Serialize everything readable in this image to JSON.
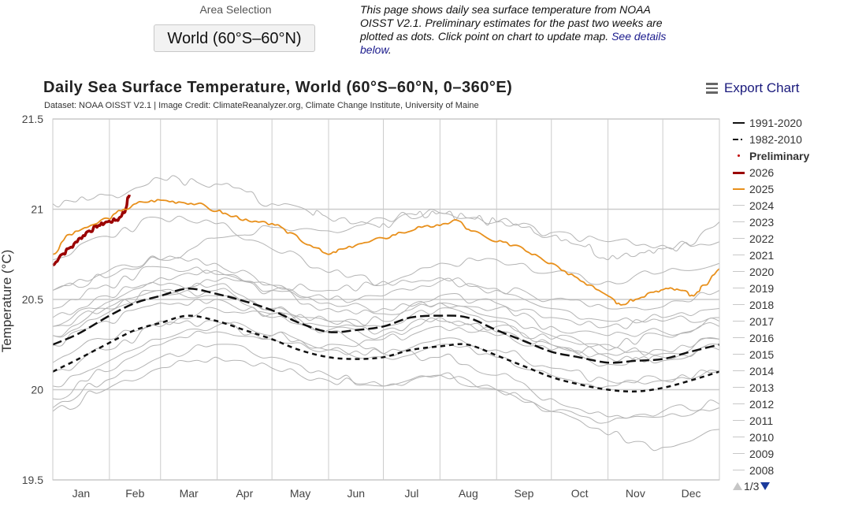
{
  "controls": {
    "area_selection_label": "Area Selection",
    "area_selection_value": "World (60°S–60°N)"
  },
  "intro": {
    "text": "This page shows daily sea surface temperature from NOAA OISST V2.1. Preliminary estimates for the past two weeks are plotted as dots. Click point on chart to update map. ",
    "link": "See details below",
    "after_link": "."
  },
  "export": {
    "label": "Export Chart",
    "icon": "hamburger-menu-icon"
  },
  "legend_nav": {
    "page": "1/3",
    "up_icon": "triangle-up-icon",
    "down_icon": "triangle-down-icon"
  },
  "colors": {
    "y2026": "#9b0000",
    "y2025": "#e8901c",
    "climatology": "#111111",
    "years": "#b4b4b4",
    "preliminary": "#c00000",
    "grid": "#cccccc"
  },
  "chart_data": {
    "type": "line",
    "title": "Daily Sea Surface Temperature, World (60°S–60°N, 0–360°E)",
    "subtitle": "Dataset: NOAA OISST V2.1 | Image Credit: ClimateReanalyzer.org, Climate Change Institute, University of Maine",
    "xlabel": "",
    "ylabel": "Temperature (°C)",
    "ylim": [
      19.5,
      21.5
    ],
    "yticks": [
      "19.5",
      "20",
      "20.5",
      "21",
      "21.5"
    ],
    "xlim_day_of_year": [
      1,
      366
    ],
    "xticks": [
      "Jan",
      "Feb",
      "Mar",
      "Apr",
      "May",
      "Jun",
      "Jul",
      "Aug",
      "Sep",
      "Oct",
      "Nov",
      "Dec"
    ],
    "grid": true,
    "legend_position": "right",
    "legend": [
      "1991-2020",
      "1982-2010",
      "Preliminary",
      "2026",
      "2025",
      "2024",
      "2023",
      "2022",
      "2021",
      "2020",
      "2019",
      "2018",
      "2017",
      "2016",
      "2015",
      "2014",
      "2013",
      "2012",
      "2011",
      "2010",
      "2009",
      "2008"
    ],
    "series": [
      {
        "name": "1991-2020",
        "style": "long-dash",
        "x": [
          1,
          15,
          32,
          46,
          60,
          75,
          91,
          106,
          121,
          136,
          152,
          167,
          182,
          197,
          213,
          228,
          244,
          259,
          274,
          289,
          305,
          320,
          335,
          350,
          366
        ],
        "values": [
          20.25,
          20.31,
          20.41,
          20.48,
          20.52,
          20.56,
          20.53,
          20.49,
          20.44,
          20.37,
          20.32,
          20.33,
          20.35,
          20.4,
          20.41,
          20.4,
          20.33,
          20.27,
          20.21,
          20.18,
          20.15,
          20.16,
          20.17,
          20.21,
          20.25
        ]
      },
      {
        "name": "1982-2010",
        "style": "short-dash",
        "x": [
          1,
          15,
          32,
          46,
          60,
          75,
          91,
          106,
          121,
          136,
          152,
          167,
          182,
          197,
          213,
          228,
          244,
          259,
          274,
          289,
          305,
          320,
          335,
          350,
          366
        ],
        "values": [
          20.1,
          20.17,
          20.26,
          20.33,
          20.37,
          20.41,
          20.38,
          20.33,
          20.28,
          20.22,
          20.18,
          20.17,
          20.18,
          20.22,
          20.24,
          20.25,
          20.19,
          20.13,
          20.07,
          20.03,
          20.0,
          19.99,
          20.01,
          20.05,
          20.1
        ]
      },
      {
        "name": "2026",
        "x": [
          1,
          6,
          11,
          16,
          21,
          26,
          31,
          36,
          40,
          43
        ],
        "values": [
          20.69,
          20.75,
          20.79,
          20.84,
          20.88,
          20.91,
          20.93,
          20.94,
          20.98,
          21.08
        ]
      },
      {
        "name": "2025",
        "x": [
          1,
          10,
          20,
          31,
          40,
          50,
          60,
          70,
          80,
          91,
          100,
          110,
          121,
          131,
          142,
          152,
          160,
          170,
          182,
          192,
          203,
          213,
          222,
          230,
          244,
          255,
          265,
          274,
          285,
          295,
          305,
          312,
          320,
          330,
          338,
          345,
          352,
          358,
          366
        ],
        "values": [
          20.75,
          20.86,
          20.9,
          20.95,
          21.0,
          21.04,
          21.05,
          21.04,
          21.03,
          20.99,
          20.96,
          20.93,
          20.92,
          20.87,
          20.8,
          20.75,
          20.78,
          20.81,
          20.84,
          20.87,
          20.9,
          20.91,
          20.94,
          20.88,
          20.82,
          20.8,
          20.75,
          20.7,
          20.64,
          20.58,
          20.52,
          20.47,
          20.5,
          20.54,
          20.56,
          20.55,
          20.52,
          20.58,
          20.67
        ]
      },
      {
        "name": "2024",
        "x": [
          1,
          20,
          40,
          60,
          80,
          100,
          121,
          142,
          152,
          170,
          182,
          200,
          213,
          230,
          244,
          260,
          274,
          290,
          305,
          320,
          335,
          350,
          366
        ],
        "values": [
          21.03,
          21.05,
          21.08,
          21.17,
          21.15,
          21.12,
          21.03,
          20.98,
          20.95,
          20.93,
          20.92,
          20.97,
          20.98,
          20.95,
          20.93,
          20.9,
          20.85,
          20.8,
          20.72,
          20.74,
          20.78,
          20.8,
          20.93
        ]
      },
      {
        "name": "2023",
        "x": [
          1,
          30,
          60,
          90,
          121,
          152,
          182,
          213,
          244,
          274,
          305,
          335,
          366
        ],
        "values": [
          20.55,
          20.62,
          20.72,
          20.84,
          20.9,
          20.88,
          20.95,
          20.98,
          20.93,
          20.87,
          20.82,
          20.8,
          20.82
        ]
      },
      {
        "name": "2022",
        "x": [
          1,
          30,
          60,
          90,
          121,
          152,
          182,
          213,
          244,
          274,
          305,
          335,
          366
        ],
        "values": [
          20.35,
          20.45,
          20.55,
          20.52,
          20.4,
          20.33,
          20.3,
          20.38,
          20.3,
          20.22,
          20.14,
          20.18,
          20.22
        ]
      },
      {
        "name": "2021",
        "x": [
          1,
          30,
          60,
          90,
          121,
          152,
          182,
          213,
          244,
          274,
          305,
          335,
          366
        ],
        "values": [
          20.3,
          20.42,
          20.52,
          20.55,
          20.44,
          20.38,
          20.35,
          20.45,
          20.38,
          20.25,
          20.18,
          20.16,
          20.25
        ]
      },
      {
        "name": "2020",
        "x": [
          1,
          30,
          60,
          90,
          121,
          152,
          182,
          213,
          244,
          274,
          305,
          335,
          366
        ],
        "values": [
          20.55,
          20.65,
          20.72,
          20.7,
          20.58,
          20.48,
          20.45,
          20.52,
          20.48,
          20.4,
          20.35,
          20.38,
          20.4
        ]
      },
      {
        "name": "2019",
        "x": [
          1,
          30,
          60,
          90,
          121,
          152,
          182,
          213,
          244,
          274,
          305,
          335,
          366
        ],
        "values": [
          20.45,
          20.58,
          20.68,
          20.66,
          20.55,
          20.5,
          20.52,
          20.6,
          20.56,
          20.5,
          20.45,
          20.46,
          20.55
        ]
      },
      {
        "name": "2018",
        "x": [
          1,
          30,
          60,
          90,
          121,
          152,
          182,
          213,
          244,
          274,
          305,
          335,
          366
        ],
        "values": [
          20.25,
          20.38,
          20.48,
          20.5,
          20.42,
          20.35,
          20.33,
          20.4,
          20.35,
          20.28,
          20.25,
          20.3,
          20.38
        ]
      },
      {
        "name": "2017",
        "x": [
          1,
          30,
          60,
          90,
          121,
          152,
          182,
          213,
          244,
          274,
          305,
          335,
          366
        ],
        "values": [
          20.4,
          20.52,
          20.62,
          20.64,
          20.55,
          20.45,
          20.42,
          20.48,
          20.4,
          20.3,
          20.22,
          20.2,
          20.28
        ]
      },
      {
        "name": "2016",
        "x": [
          1,
          30,
          60,
          90,
          121,
          152,
          182,
          213,
          244,
          274,
          305,
          335,
          366
        ],
        "values": [
          20.72,
          20.85,
          20.95,
          20.92,
          20.78,
          20.65,
          20.6,
          20.62,
          20.55,
          20.45,
          20.38,
          20.4,
          20.45
        ]
      },
      {
        "name": "2015",
        "x": [
          1,
          30,
          60,
          90,
          121,
          152,
          182,
          213,
          244,
          274,
          305,
          335,
          366
        ],
        "values": [
          20.3,
          20.45,
          20.55,
          20.6,
          20.58,
          20.55,
          20.58,
          20.7,
          20.72,
          20.65,
          20.6,
          20.65,
          20.7
        ]
      },
      {
        "name": "2014",
        "x": [
          1,
          30,
          60,
          90,
          121,
          152,
          182,
          213,
          244,
          274,
          305,
          335,
          366
        ],
        "values": [
          20.15,
          20.28,
          20.38,
          20.45,
          20.42,
          20.38,
          20.38,
          20.48,
          20.45,
          20.35,
          20.3,
          20.32,
          20.35
        ]
      },
      {
        "name": "2013",
        "x": [
          1,
          30,
          60,
          90,
          121,
          152,
          182,
          213,
          244,
          274,
          305,
          335,
          366
        ],
        "values": [
          20.1,
          20.22,
          20.35,
          20.38,
          20.3,
          20.22,
          20.18,
          20.25,
          20.18,
          20.08,
          20.02,
          20.05,
          20.1
        ]
      },
      {
        "name": "2012",
        "x": [
          1,
          30,
          60,
          90,
          121,
          152,
          182,
          213,
          244,
          274,
          305,
          335,
          366
        ],
        "values": [
          19.95,
          20.1,
          20.25,
          20.32,
          20.28,
          20.22,
          20.2,
          20.28,
          20.22,
          20.12,
          20.05,
          20.05,
          20.1
        ]
      },
      {
        "name": "2011",
        "x": [
          1,
          30,
          60,
          90,
          121,
          152,
          182,
          213,
          244,
          274,
          305,
          335,
          366
        ],
        "values": [
          19.9,
          20.05,
          20.18,
          20.25,
          20.18,
          20.08,
          20.02,
          20.08,
          20.0,
          19.88,
          19.82,
          19.85,
          19.9
        ]
      },
      {
        "name": "2010",
        "x": [
          1,
          30,
          60,
          90,
          121,
          152,
          182,
          213,
          244,
          274,
          305,
          335,
          366
        ],
        "values": [
          20.35,
          20.48,
          20.58,
          20.58,
          20.45,
          20.32,
          20.2,
          20.18,
          20.08,
          19.95,
          19.85,
          19.88,
          19.92
        ]
      },
      {
        "name": "2009",
        "x": [
          1,
          30,
          60,
          90,
          121,
          152,
          182,
          213,
          244,
          274,
          305,
          335,
          366
        ],
        "values": [
          20.02,
          20.15,
          20.28,
          20.35,
          20.3,
          20.25,
          20.28,
          20.35,
          20.32,
          20.25,
          20.2,
          20.22,
          20.28
        ]
      },
      {
        "name": "2008",
        "x": [
          1,
          30,
          60,
          90,
          121,
          152,
          182,
          213,
          244,
          274,
          305,
          335,
          366
        ],
        "values": [
          19.88,
          20.0,
          20.12,
          20.18,
          20.12,
          20.05,
          20.02,
          20.08,
          20.0,
          19.88,
          19.75,
          19.68,
          19.78
        ]
      }
    ]
  }
}
